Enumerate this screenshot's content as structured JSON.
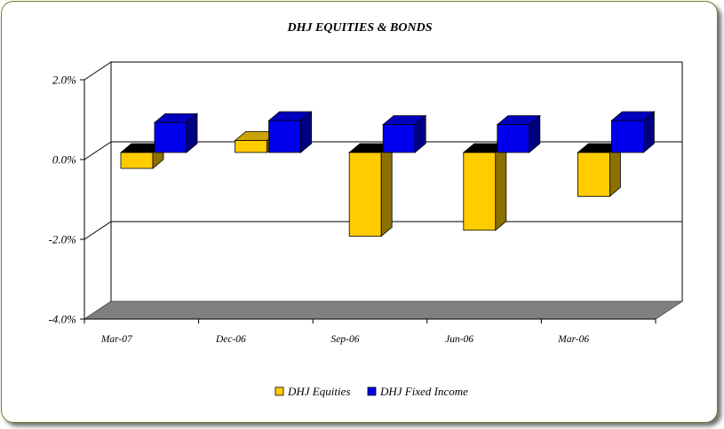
{
  "chart_data": {
    "type": "bar",
    "title": "DHJ EQUITIES & BONDS",
    "categories": [
      "Mar-07",
      "Dec-06",
      "Sep-06",
      "Jun-06",
      "Mar-06"
    ],
    "series": [
      {
        "name": "DHJ Equities",
        "values": [
          -0.4,
          0.3,
          -2.1,
          -1.95,
          -1.1
        ],
        "color": "#ffcc00"
      },
      {
        "name": "DHJ Fixed Income",
        "values": [
          0.75,
          0.8,
          0.7,
          0.7,
          0.8
        ],
        "color": "#0000ee"
      }
    ],
    "y_ticks": [
      "2.0%",
      "0.0%",
      "-2.0%",
      "-4.0%"
    ],
    "ylim": [
      -4.0,
      2.0
    ],
    "ylabel": "",
    "xlabel": "",
    "grid": true,
    "legend_position": "bottom"
  }
}
